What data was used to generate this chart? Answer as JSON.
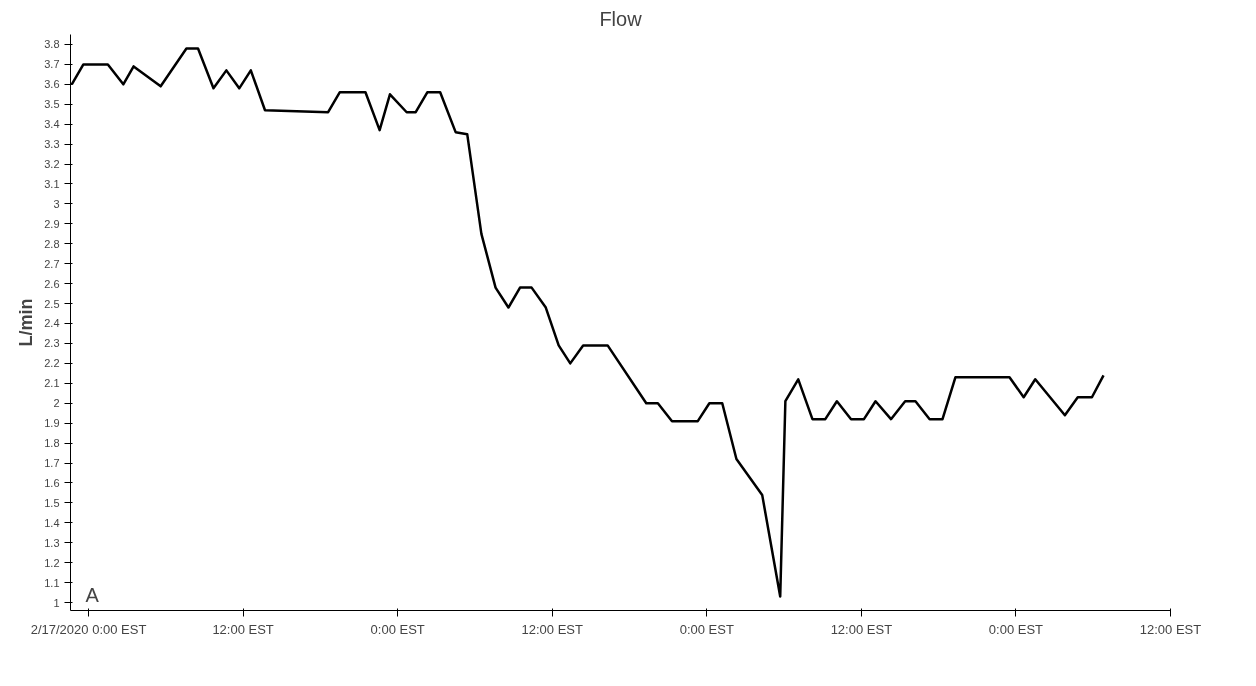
{
  "chart_data": {
    "type": "line",
    "title": "Flow",
    "ylabel": "L/min",
    "annotations": [
      "A"
    ],
    "x": [
      "2020-02-16T22:42",
      "2020-02-16T23:36",
      "2020-02-17T01:30",
      "2020-02-17T02:42",
      "2020-02-17T03:30",
      "2020-02-17T05:36",
      "2020-02-17T07:36",
      "2020-02-17T08:30",
      "2020-02-17T09:42",
      "2020-02-17T10:42",
      "2020-02-17T11:42",
      "2020-02-17T12:36",
      "2020-02-17T13:42",
      "2020-02-17T18:36",
      "2020-02-17T19:30",
      "2020-02-17T21:30",
      "2020-02-17T22:36",
      "2020-02-17T23:24",
      "2020-02-18T00:42",
      "2020-02-18T01:24",
      "2020-02-18T02:18",
      "2020-02-18T03:18",
      "2020-02-18T04:30",
      "2020-02-18T05:24",
      "2020-02-18T06:30",
      "2020-02-18T07:36",
      "2020-02-18T08:36",
      "2020-02-18T09:30",
      "2020-02-18T10:24",
      "2020-02-18T11:30",
      "2020-02-18T12:30",
      "2020-02-18T13:24",
      "2020-02-18T14:24",
      "2020-02-18T16:18",
      "2020-02-18T19:18",
      "2020-02-18T20:12",
      "2020-02-18T21:18",
      "2020-02-18T23:18",
      "2020-02-19T00:12",
      "2020-02-19T01:12",
      "2020-02-19T02:18",
      "2020-02-19T03:18",
      "2020-02-19T04:18",
      "2020-02-19T05:42",
      "2020-02-19T06:06",
      "2020-02-19T07:06",
      "2020-02-19T08:12",
      "2020-02-19T09:12",
      "2020-02-19T10:06",
      "2020-02-19T11:12",
      "2020-02-19T12:12",
      "2020-02-19T13:06",
      "2020-02-19T14:18",
      "2020-02-19T15:24",
      "2020-02-19T16:12",
      "2020-02-19T17:18",
      "2020-02-19T18:18",
      "2020-02-19T19:18",
      "2020-02-19T23:30",
      "2020-02-20T00:36",
      "2020-02-20T01:30",
      "2020-02-20T03:48",
      "2020-02-20T04:48",
      "2020-02-20T05:54",
      "2020-02-20T06:48"
    ],
    "series": [
      {
        "color": "#000000",
        "values": [
          3.6,
          3.7,
          3.7,
          3.6,
          3.69,
          3.59,
          3.78,
          3.78,
          3.58,
          3.67,
          3.58,
          3.67,
          3.47,
          3.46,
          3.56,
          3.56,
          3.37,
          3.55,
          3.46,
          3.46,
          3.56,
          3.56,
          3.36,
          3.35,
          2.85,
          2.58,
          2.48,
          2.58,
          2.58,
          2.48,
          2.29,
          2.2,
          2.29,
          2.29,
          2.0,
          2.0,
          1.91,
          1.91,
          2.0,
          2.0,
          1.72,
          1.63,
          1.54,
          1.03,
          2.01,
          2.12,
          1.92,
          1.92,
          2.01,
          1.92,
          1.92,
          2.01,
          1.92,
          2.01,
          2.01,
          1.92,
          1.92,
          2.13,
          2.13,
          2.03,
          2.12,
          1.94,
          2.03,
          2.03,
          2.14
        ]
      }
    ],
    "xlim": [
      "2020-02-16T22:36",
      "2020-02-20T12:00"
    ],
    "ylim": [
      0.96,
      3.85
    ],
    "xticks": [
      {
        "value": "2020-02-17T00:00",
        "label": "2/17/2020 0:00 EST"
      },
      {
        "value": "2020-02-17T12:00",
        "label": "12:00 EST"
      },
      {
        "value": "2020-02-18T00:00",
        "label": "0:00 EST"
      },
      {
        "value": "2020-02-18T12:00",
        "label": "12:00 EST"
      },
      {
        "value": "2020-02-19T00:00",
        "label": "0:00 EST"
      },
      {
        "value": "2020-02-19T12:00",
        "label": "12:00 EST"
      },
      {
        "value": "2020-02-20T00:00",
        "label": "0:00 EST"
      },
      {
        "value": "2020-02-20T12:00",
        "label": "12:00 EST"
      }
    ],
    "yticks": [
      1,
      1.1,
      1.2,
      1.3,
      1.4,
      1.5,
      1.6,
      1.7,
      1.8,
      1.9,
      2,
      2.1,
      2.2,
      2.3,
      2.4,
      2.5,
      2.6,
      2.7,
      2.8,
      2.9,
      3,
      3.1,
      3.2,
      3.3,
      3.4,
      3.5,
      3.6,
      3.7,
      3.8
    ],
    "grid": false,
    "marker": "none",
    "line_style": "solid"
  }
}
